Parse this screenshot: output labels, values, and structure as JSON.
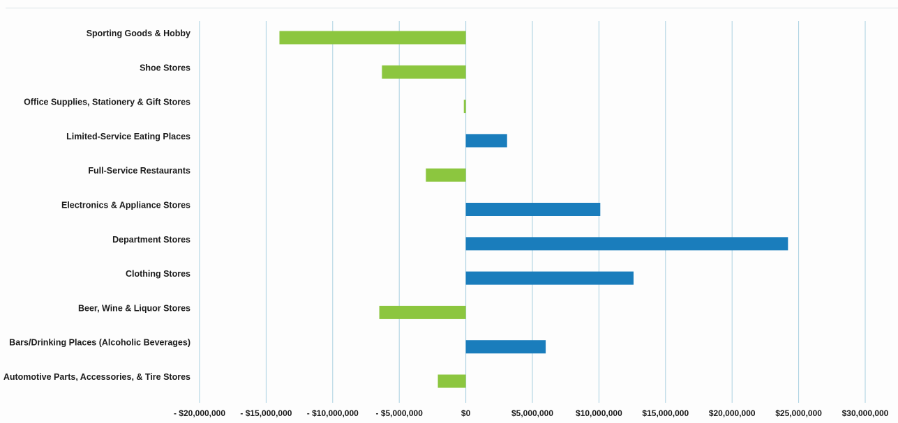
{
  "chart_data": {
    "type": "bar",
    "orientation": "horizontal",
    "categories": [
      "Sporting Goods & Hobby",
      "Shoe Stores",
      "Office Supplies, Stationery & Gift Stores",
      "Limited-Service Eating Places",
      "Full-Service Restaurants",
      "Electronics & Appliance Stores",
      "Department Stores",
      "Clothing Stores",
      "Beer, Wine & Liquor Stores",
      "Bars/Drinking Places (Alcoholic Beverages)",
      "Automotive Parts, Accessories, & Tire Stores"
    ],
    "values": [
      -14000000,
      -6300000,
      -150000,
      3100000,
      -3000000,
      10100000,
      24200000,
      12600000,
      -6500000,
      6000000,
      -2100000
    ],
    "xlim": [
      -20000000,
      30000000
    ],
    "x_ticks": [
      -20000000,
      -15000000,
      -10000000,
      -5000000,
      0,
      5000000,
      10000000,
      15000000,
      20000000,
      25000000,
      30000000
    ],
    "x_tick_labels": [
      "- $20,000,000",
      "- $15,000,000",
      "- $10,000,000",
      "- $5,000,000",
      "$0",
      "$5,000,000",
      "$10,000,000",
      "$15,000,000",
      "$20,000,000",
      "$25,000,000",
      "$30,000,000"
    ],
    "colors": {
      "negative": "#8cc63f",
      "positive": "#1a7dbc"
    },
    "grid": true,
    "title": "",
    "xlabel": "",
    "ylabel": ""
  }
}
